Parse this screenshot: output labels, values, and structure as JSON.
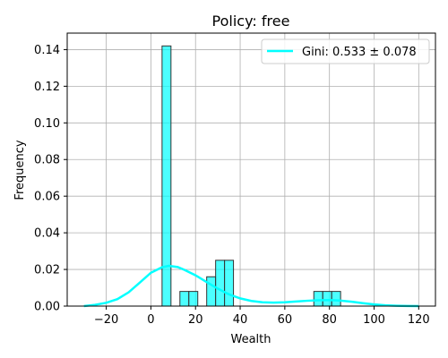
{
  "chart_data": {
    "type": "bar",
    "title": "Policy: free",
    "xlabel": "Wealth",
    "ylabel": "Frequency",
    "xlim": [
      -37.5,
      127.5
    ],
    "ylim": [
      0,
      0.149
    ],
    "grid": true,
    "legend_position": "top-right",
    "xticks": [
      -20,
      0,
      20,
      40,
      60,
      80,
      100,
      120
    ],
    "xtick_labels": [
      "−20",
      "0",
      "20",
      "40",
      "60",
      "80",
      "100",
      "120"
    ],
    "yticks": [
      0.0,
      0.02,
      0.04,
      0.06,
      0.08,
      0.1,
      0.12,
      0.14
    ],
    "ytick_labels": [
      "0.00",
      "0.02",
      "0.04",
      "0.06",
      "0.08",
      "0.10",
      "0.12",
      "0.14"
    ],
    "histogram": {
      "color": "#00ffff",
      "edge_color": "#333333",
      "bins": [
        {
          "x0": 5,
          "x1": 9,
          "value": 0.142
        },
        {
          "x0": 13,
          "x1": 17,
          "value": 0.008
        },
        {
          "x0": 17,
          "x1": 21,
          "value": 0.008
        },
        {
          "x0": 25,
          "x1": 29,
          "value": 0.016
        },
        {
          "x0": 29,
          "x1": 33,
          "value": 0.025
        },
        {
          "x0": 33,
          "x1": 37,
          "value": 0.025
        },
        {
          "x0": 73,
          "x1": 77,
          "value": 0.008
        },
        {
          "x0": 77,
          "x1": 81,
          "value": 0.008
        },
        {
          "x0": 81,
          "x1": 85,
          "value": 0.008
        }
      ]
    },
    "kde": {
      "name": "Gini: 0.533 ± 0.078",
      "color": "#00ffff",
      "x": [
        -30,
        -25,
        -20,
        -15,
        -10,
        -5,
        0,
        5,
        8,
        12,
        15,
        20,
        25,
        30,
        35,
        40,
        45,
        50,
        55,
        60,
        65,
        70,
        75,
        80,
        85,
        90,
        95,
        100,
        105,
        110,
        115,
        120
      ],
      "y": [
        0.0,
        0.0007,
        0.0018,
        0.0038,
        0.0075,
        0.0128,
        0.0182,
        0.0212,
        0.022,
        0.0213,
        0.0198,
        0.0168,
        0.0131,
        0.0095,
        0.0064,
        0.0042,
        0.0028,
        0.0021,
        0.0019,
        0.0021,
        0.0025,
        0.0029,
        0.0032,
        0.0033,
        0.003,
        0.0024,
        0.0016,
        0.0009,
        0.0004,
        0.0002,
        5e-05,
        0.0
      ]
    }
  }
}
